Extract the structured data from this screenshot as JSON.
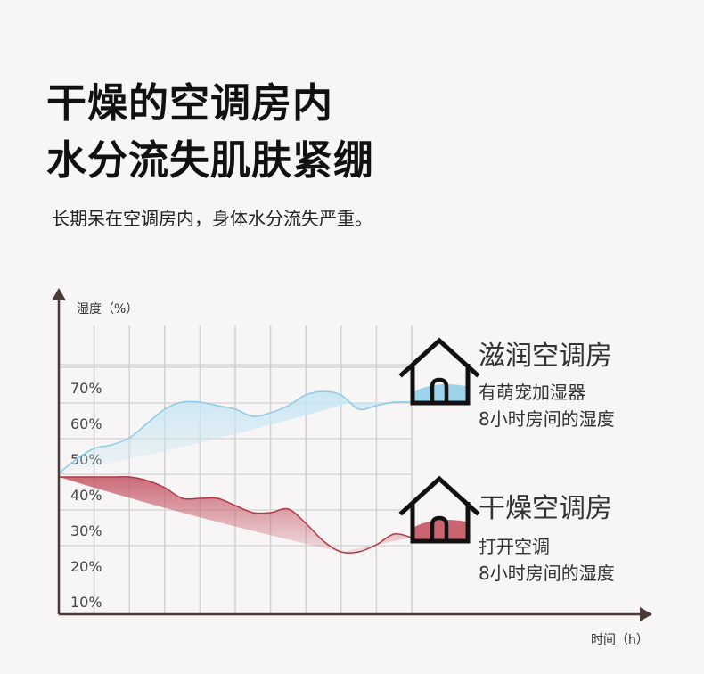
{
  "header": {
    "title_line1": "干燥的空调房内",
    "title_line2": "水分流失肌肤紧绷",
    "subtitle": "长期呆在空调房内，身体水分流失严重。"
  },
  "legend": {
    "moist": {
      "title": "滋润空调房",
      "line1": "有萌宠加湿器",
      "line2": "8小时房间的湿度",
      "icon": "house-icon"
    },
    "dry": {
      "title": "干燥空调房",
      "line1": "打开空调",
      "line2": "8小时房间的湿度",
      "icon": "house-icon"
    }
  },
  "colors": {
    "moist_line": "#8fcbe6",
    "moist_fill": "#c7e6f4",
    "dry_line": "#b23846",
    "dry_fill": "#c96471",
    "axis": "#4a3a3a",
    "grid": "#d2d2d2",
    "house": "#111111"
  },
  "chart_data": {
    "type": "area",
    "ylabel": "湿度（%）",
    "xlabel": "时间（h）",
    "yticks": [
      "10%",
      "20%",
      "30%",
      "40%",
      "50%",
      "60%",
      "70%"
    ],
    "ylim": [
      5,
      80
    ],
    "xlim": [
      0,
      10
    ],
    "grid": true,
    "series": [
      {
        "name": "滋润空调房",
        "x": [
          0,
          0.5,
          1,
          1.5,
          2,
          2.5,
          3,
          3.5,
          4,
          4.5,
          5,
          5.5,
          6,
          6.5,
          7,
          7.5,
          8,
          8.5,
          9,
          9.5,
          10
        ],
        "values": [
          46,
          50,
          53,
          54,
          56,
          60,
          64,
          66,
          66,
          65,
          64,
          62,
          63,
          65,
          68,
          69,
          68,
          64,
          65,
          66,
          66
        ]
      },
      {
        "name": "干燥空调房",
        "x": [
          0,
          0.5,
          1,
          1.5,
          2,
          2.5,
          3,
          3.5,
          4,
          4.5,
          5,
          5.5,
          6,
          6.5,
          7,
          7.5,
          8,
          8.5,
          9,
          9.5,
          10
        ],
        "values": [
          45,
          45,
          45,
          45,
          45,
          44,
          42,
          39,
          39,
          39,
          37,
          35,
          35,
          36,
          32,
          27,
          24,
          24,
          26,
          29,
          28
        ]
      }
    ]
  }
}
